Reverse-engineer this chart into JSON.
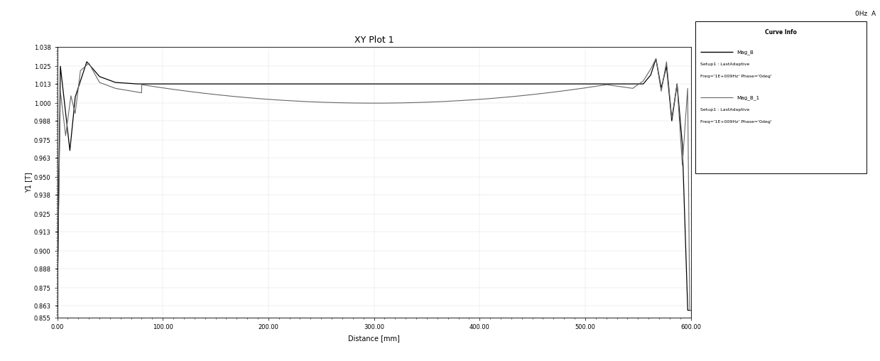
{
  "title": "XY Plot 1",
  "subtitle": "0Hz  A",
  "xlabel": "Distance [mm]",
  "ylabel": "Y1 [T]",
  "xlim": [
    -0.001,
    600.0
  ],
  "ylim": [
    0.855,
    1.038
  ],
  "xticks": [
    0.0,
    100.0,
    200.0,
    300.0,
    400.0,
    500.0,
    600.0
  ],
  "xtick_labels": [
    "0.00",
    "100.00",
    "200.00",
    "300.00",
    "400.00",
    "500.00",
    "600.00"
  ],
  "yticks": [
    0.855,
    0.863,
    0.875,
    0.888,
    0.9,
    0.913,
    0.925,
    0.938,
    0.95,
    0.963,
    0.975,
    0.988,
    1.0,
    1.013,
    1.025,
    1.038
  ],
  "ytick_labels": [
    "0.855",
    "0.863",
    "0.875",
    "0.888",
    "0.900",
    "0.913",
    "0.925",
    "0.938",
    "0.950",
    "0.963",
    "0.975",
    "0.988",
    "1.000",
    "1.013",
    "1.025",
    "1.038"
  ],
  "background_color": "#ffffff",
  "plot_bg_color": "#ffffff",
  "line1_color": "#000000",
  "line2_color": "#666666",
  "legend_title": "Curve Info",
  "legend_label1": "Mag_B",
  "legend_sub1a": "Setup1 : LastAdaptive",
  "legend_sub1b": "Freq='1E+009Hz' Phase='0deg'",
  "legend_label2": "Mag_B_1",
  "legend_sub2a": "Setup1 : LastAdaptive",
  "legend_sub2b": "Freq='1E+009Hz' Phase='0deg'"
}
